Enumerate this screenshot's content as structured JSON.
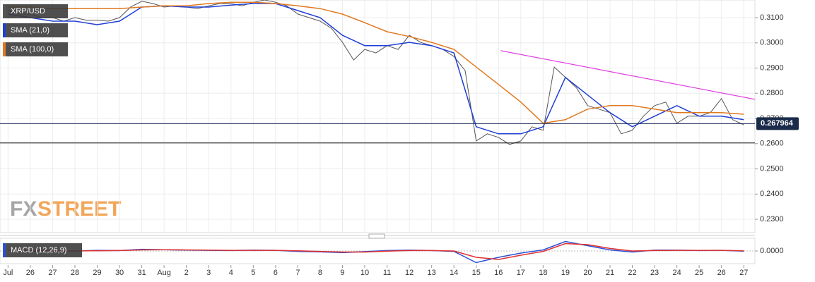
{
  "chart_data": [
    {
      "type": "line",
      "watermark": [
        "FX",
        "STREET"
      ],
      "xlim": [
        -0.36,
        33.5
      ],
      "ylim": [
        0.2247,
        0.317
      ],
      "grid": true,
      "xticks": [
        {
          "value": 0,
          "label": "Jul"
        },
        {
          "value": 1,
          "label": "26"
        },
        {
          "value": 2,
          "label": "27"
        },
        {
          "value": 3,
          "label": "28"
        },
        {
          "value": 4,
          "label": "29"
        },
        {
          "value": 5,
          "label": "30"
        },
        {
          "value": 6,
          "label": "31"
        },
        {
          "value": 7,
          "label": "Aug"
        },
        {
          "value": 8,
          "label": "2"
        },
        {
          "value": 9,
          "label": "3"
        },
        {
          "value": 10,
          "label": "4"
        },
        {
          "value": 11,
          "label": "5"
        },
        {
          "value": 12,
          "label": "6"
        },
        {
          "value": 13,
          "label": "7"
        },
        {
          "value": 14,
          "label": "8"
        },
        {
          "value": 15,
          "label": "9"
        },
        {
          "value": 16,
          "label": "10"
        },
        {
          "value": 17,
          "label": "11"
        },
        {
          "value": 18,
          "label": "12"
        },
        {
          "value": 19,
          "label": "13"
        },
        {
          "value": 20,
          "label": "14"
        },
        {
          "value": 21,
          "label": "15"
        },
        {
          "value": 22,
          "label": "16"
        },
        {
          "value": 23,
          "label": "17"
        },
        {
          "value": 24,
          "label": "18"
        },
        {
          "value": 25,
          "label": "19"
        },
        {
          "value": 26,
          "label": "20"
        },
        {
          "value": 27,
          "label": "21"
        },
        {
          "value": 28,
          "label": "22"
        },
        {
          "value": 29,
          "label": "23"
        },
        {
          "value": 30,
          "label": "24"
        },
        {
          "value": 31,
          "label": "25"
        },
        {
          "value": 32,
          "label": "26"
        },
        {
          "value": 33,
          "label": "27"
        }
      ],
      "yticks": [
        {
          "value": 0.23,
          "label": "0.2300"
        },
        {
          "value": 0.24,
          "label": "0.2400"
        },
        {
          "value": 0.25,
          "label": "0.2500"
        },
        {
          "value": 0.26,
          "label": "0.2600"
        },
        {
          "value": 0.27,
          "label": "0.2700"
        },
        {
          "value": 0.28,
          "label": "0.2800"
        },
        {
          "value": 0.29,
          "label": "0.2900"
        },
        {
          "value": 0.3,
          "label": "0.3000"
        },
        {
          "value": 0.31,
          "label": "0.3100"
        }
      ],
      "series": [
        {
          "name": "XRP/USD",
          "color": "#555555",
          "x": [
            0,
            0.5,
            1,
            1.5,
            2,
            2.5,
            3,
            3.5,
            4,
            4.5,
            5,
            5.5,
            6,
            6.5,
            7,
            7.5,
            8,
            8.5,
            9,
            9.5,
            10,
            10.5,
            11,
            11.5,
            12,
            12.5,
            13,
            13.5,
            14,
            14.5,
            15,
            15.5,
            16,
            16.5,
            17,
            17.5,
            18,
            18.5,
            19,
            19.5,
            20,
            20.5,
            21,
            21.5,
            22,
            22.5,
            23,
            23.5,
            24,
            24.5,
            25,
            25.5,
            26,
            26.5,
            27,
            27.5,
            28,
            28.5,
            29,
            29.5,
            30,
            30.5,
            31,
            31.5,
            32,
            32.5,
            33
          ],
          "values": [
            0.3128,
            0.3114,
            0.3114,
            0.31,
            0.31,
            0.3086,
            0.31,
            0.309,
            0.309,
            0.3086,
            0.31,
            0.3142,
            0.3165,
            0.3156,
            0.3142,
            0.3147,
            0.3142,
            0.3136,
            0.3147,
            0.3156,
            0.3156,
            0.3147,
            0.3161,
            0.317,
            0.3161,
            0.3147,
            0.3114,
            0.31,
            0.3086,
            0.3058,
            0.3002,
            0.2932,
            0.2974,
            0.296,
            0.2989,
            0.2974,
            0.303,
            0.3002,
            0.2989,
            0.2974,
            0.2946,
            0.289,
            0.2611,
            0.2639,
            0.2625,
            0.2597,
            0.2611,
            0.2667,
            0.2653,
            0.2904,
            0.2863,
            0.2821,
            0.2751,
            0.2737,
            0.2723,
            0.2639,
            0.2653,
            0.2709,
            0.2751,
            0.2765,
            0.2681,
            0.2709,
            0.2709,
            0.2723,
            0.2779,
            0.2695,
            0.2675
          ]
        },
        {
          "name": "SMA (21,0)",
          "color": "#1f3fd6",
          "x": [
            0,
            1,
            2,
            3,
            4,
            5,
            6,
            7,
            8,
            9,
            10,
            11,
            12,
            13,
            14,
            15,
            16,
            17,
            18,
            19,
            20,
            21,
            22,
            23,
            24,
            25,
            26,
            27,
            28,
            29,
            30,
            31,
            32,
            33
          ],
          "values": [
            0.3114,
            0.31,
            0.3086,
            0.3086,
            0.3072,
            0.3086,
            0.3142,
            0.3147,
            0.3142,
            0.3142,
            0.315,
            0.3156,
            0.3156,
            0.3128,
            0.31,
            0.303,
            0.2989,
            0.2989,
            0.3002,
            0.2989,
            0.296,
            0.2667,
            0.2639,
            0.2639,
            0.2667,
            0.2863,
            0.2793,
            0.2723,
            0.2667,
            0.2709,
            0.2751,
            0.2709,
            0.2709,
            0.2695
          ]
        },
        {
          "name": "SMA (100,0)",
          "color": "#e07a20",
          "x": [
            0,
            1,
            2,
            3,
            4,
            5,
            6,
            7,
            8,
            9,
            10,
            11,
            12,
            13,
            14,
            15,
            16,
            17,
            18,
            19,
            20,
            21,
            22,
            23,
            24,
            25,
            26,
            27,
            28,
            29,
            30,
            31,
            32,
            33
          ],
          "values": [
            0.3142,
            0.3142,
            0.3136,
            0.3136,
            0.3136,
            0.3136,
            0.3142,
            0.3147,
            0.3147,
            0.3156,
            0.3161,
            0.3161,
            0.3156,
            0.3147,
            0.3136,
            0.3114,
            0.308,
            0.3044,
            0.3025,
            0.3002,
            0.2974,
            0.2904,
            0.2835,
            0.2765,
            0.2681,
            0.2695,
            0.2737,
            0.2751,
            0.2751,
            0.2737,
            0.2723,
            0.2723,
            0.2723,
            0.2717
          ]
        }
      ],
      "trendline": {
        "x": [
          22.1,
          33.5
        ],
        "values": [
          0.2969,
          0.2776
        ],
        "color": "#e040e0"
      },
      "support": 0.2603,
      "last_price": 0.267964
    },
    {
      "type": "line",
      "xlim": [
        -0.36,
        33.5
      ],
      "ylim": [
        -0.006,
        0.006
      ],
      "yticks": [
        {
          "value": 0,
          "label": "0.0000"
        }
      ],
      "series": [
        {
          "name": "MACD (12,26,9)",
          "color": "#2b50d8",
          "x": [
            0,
            1,
            2,
            3,
            4,
            5,
            6,
            7,
            8,
            9,
            10,
            11,
            12,
            13,
            14,
            15,
            16,
            17,
            18,
            19,
            20,
            21,
            22,
            23,
            24,
            25,
            26,
            27,
            28,
            29,
            30,
            31,
            32,
            33
          ],
          "values": [
            0.0005,
            0,
            -0.0003,
            0,
            0.0003,
            0.0002,
            0.0008,
            0.0006,
            0.0004,
            0.0003,
            0.0002,
            0.0004,
            0.0003,
            -0.0002,
            -0.0004,
            -0.0008,
            -0.0003,
            0.0002,
            0.0004,
            0.0002,
            -0.0002,
            -0.0055,
            -0.003,
            -0.001,
            0.0005,
            0.0045,
            0.0025,
            0.0005,
            -0.0005,
            0.0004,
            0.0004,
            0.0002,
            0.0003,
            -0.0001
          ]
        },
        {
          "color": "#e03030",
          "x": [
            0,
            1,
            2,
            3,
            4,
            5,
            6,
            7,
            8,
            9,
            10,
            11,
            12,
            13,
            14,
            15,
            16,
            17,
            18,
            19,
            20,
            21,
            22,
            23,
            24,
            25,
            26,
            27,
            28,
            29,
            30,
            31,
            32,
            33
          ],
          "values": [
            0.0004,
            0.0002,
            0,
            0,
            0.0001,
            0.0002,
            0.0005,
            0.0006,
            0.0005,
            0.0004,
            0.0003,
            0.0003,
            0.0003,
            0.0001,
            -0.0002,
            -0.0005,
            -0.0005,
            -0.0001,
            0.0002,
            0.0002,
            0,
            -0.003,
            -0.004,
            -0.002,
            -0.0002,
            0.0035,
            0.003,
            0.0012,
            0,
            0.0002,
            0.0003,
            0.0003,
            0.0003,
            0.0001
          ]
        }
      ]
    }
  ]
}
